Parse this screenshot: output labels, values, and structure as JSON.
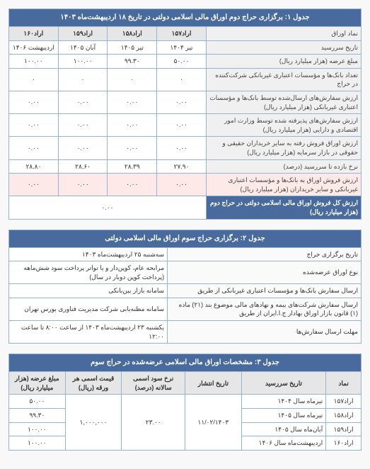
{
  "table1": {
    "title": "جدول ۱: برگزاری حراج دوم اوراق مالی اسلامی دولتی در تاریخ ۱۸ اردیبهشت‌ماه ۱۴۰۳",
    "col_head_label": "نماد اوراق",
    "cols": [
      "اراد۱۵۷",
      "اراد۱۵۸",
      "اراد۱۵۹",
      "اراد۱۶۰"
    ],
    "rows": [
      {
        "label": "تاریخ سررسید",
        "vals": [
          "تیر ۱۴۰۴",
          "تیر ۱۴۰۵",
          "آبان ۱۴۰۵",
          "اردیبهشت ۱۴۰۶"
        ]
      },
      {
        "label": "مبلغ عرضه (هزار میلیارد ریال)",
        "vals": [
          "۵۰.۰۰",
          "۹۹.۳۰",
          "۱۰۰.۰۰",
          "۱۰۰.۰۰"
        ]
      },
      {
        "label": "تعداد بانک‌ها و مؤسسات اعتباری غیربانکی شرکت‌کننده در حراج",
        "vals": [
          "۰",
          "۰",
          "۰",
          "۰"
        ]
      },
      {
        "label": "ارزش سفارش‌های ارسال‌شده توسط بانک‌ها و مؤسسات اعتباری غیربانکی (هزار میلیارد ریال)",
        "vals": [
          "۰.۰۰",
          "۰.۰۰",
          "۰.۰۰",
          "۰.۰۰"
        ]
      },
      {
        "label": "ارزش سفارش‌های پذیرفته شده توسط وزارت امور اقتصادی و دارایی (هزار میلیارد ریال)",
        "vals": [
          "۰.۰۰",
          "۰.۰۰",
          "۰.۰۰",
          "۰.۰۰"
        ]
      },
      {
        "label": "ارزش اوراق فروش رفته به سایر خریداران حقیقی و حقوقی در بازار سرمایه (هزار میلیارد ریال)",
        "vals": [
          "۰.۰۰",
          "۰.۰۰",
          "۰.۰۰",
          "۰.۰۰"
        ]
      },
      {
        "label": "نرخ بازده تا سررسید (درصد)",
        "vals": [
          "۲۷.۹۰",
          "۲۸.۳۹",
          "۲۸.۶۰",
          "۲۸.۸۰"
        ]
      }
    ],
    "highlight": {
      "label": "ارزش فروش اوراق به بانک‌ها و مؤسسات اعتباری غیربانکی و سایر خریداران (هزار میلیارد ریال)",
      "vals": [
        "۰.۰۰",
        "۰.۰۰",
        "۰.۰۰",
        "۰.۰۰"
      ]
    },
    "total": {
      "label": "ارزش کل فروش اوراق مالی اسلامی دولتی در حراج دوم (هزار میلیارد ریال)",
      "val": "۰.۰۰"
    }
  },
  "table2": {
    "title": "جدول ۲: برگزاری حراج سوم اوراق مالی اسلامی دولتی",
    "rows": [
      {
        "label": "تاریخ برگزاری حراج",
        "val": "سه‌شنبه ۲۵ اردیبهشت‌ماه ۱۴۰۳"
      },
      {
        "label": "نوع اوراق عرضه‌شده",
        "val": "مرابحه عام، کوپن‌دار و با تواتر پرداخت سود شش‌ماهه (پرداخت کوپن دوبار در سال)"
      },
      {
        "label": "ارسال سفارش بانک‌ها و مؤسسات اعتباری غیربانکی از طریق",
        "val": "سامانه بازار بین‌بانکی"
      },
      {
        "label": "ارسال سفارش شرکت‌های بیمه و نهادهای مالی موضوع بند (۲۱) ماده (۱) قانون بازار اوراق بهادار ج.ا.ایران از طریق",
        "val": "سامانه مظنه‌یابی شرکت مدیریت فناوری بورس تهران"
      },
      {
        "label": "مهلت ارسال سفارش‌ها",
        "val": "یکشنبه ۲۳ اردیبهشت‌ماه ۱۴۰۳ از ساعت ۸:۰۰ تا ساعت ۱۲:۰۰"
      }
    ]
  },
  "table3": {
    "title": "جدول ۳: مشخصات اوراق مالی اسلامی عرضه‌شده در حراج سوم",
    "headers": [
      "نماد",
      "تاریخ سررسید",
      "تاریخ انتشار",
      "نرخ سود اسمی سالانه (درصد)",
      "قیمت اسمی هر ورقه (ریال)",
      "مبلغ عرضه (هزار میلیارد ریال)"
    ],
    "issue_date": "۱۱/۰۲/۱۴۰۳",
    "rate": "۲۳.۰۰",
    "price": "۱,۰۰۰,۰۰۰",
    "rows": [
      {
        "sym": "اراد۱۵۷",
        "mat": "تیرماه سال ۱۴۰۴",
        "amt": "۵۰.۰۰"
      },
      {
        "sym": "اراد۱۵۸",
        "mat": "تیرماه سال ۱۴۰۵",
        "amt": "۹۹.۳۰"
      },
      {
        "sym": "اراد۱۵۹",
        "mat": "آبان‌ماه سال ۱۴۰۵",
        "amt": "۱۰۰.۰۰"
      },
      {
        "sym": "اراد۱۶۰",
        "mat": "اردیبهشت‌ماه سال ۱۴۰۶",
        "amt": "۱۰۰.۰۰"
      }
    ]
  }
}
